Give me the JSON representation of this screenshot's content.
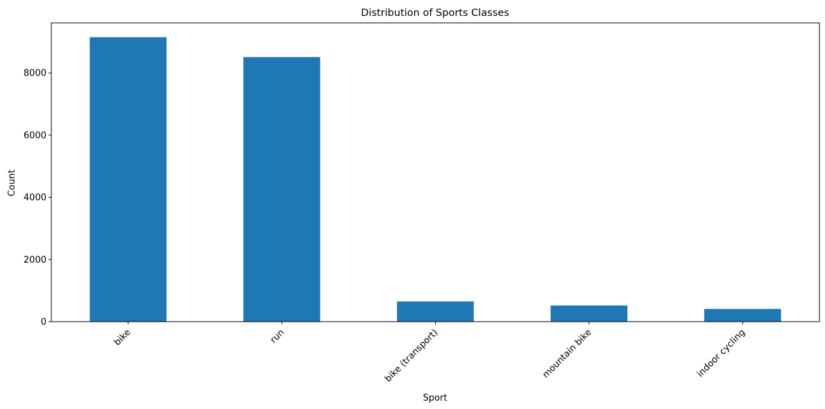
{
  "chart_data": {
    "type": "bar",
    "title": "Distribution of Sports Classes",
    "xlabel": "Sport",
    "ylabel": "Count",
    "categories": [
      "bike",
      "run",
      "bike (transport)",
      "mountain bike",
      "indoor cycling"
    ],
    "values": [
      9150,
      8510,
      650,
      520,
      410
    ],
    "ylim": [
      0,
      9610
    ],
    "yticks": [
      0,
      2000,
      4000,
      6000,
      8000
    ],
    "ytick_labels": [
      "0",
      "2000",
      "4000",
      "6000",
      "8000"
    ],
    "bar_color": "#1f77b4",
    "grid": false,
    "legend": "none",
    "xtick_rotation": 45
  }
}
